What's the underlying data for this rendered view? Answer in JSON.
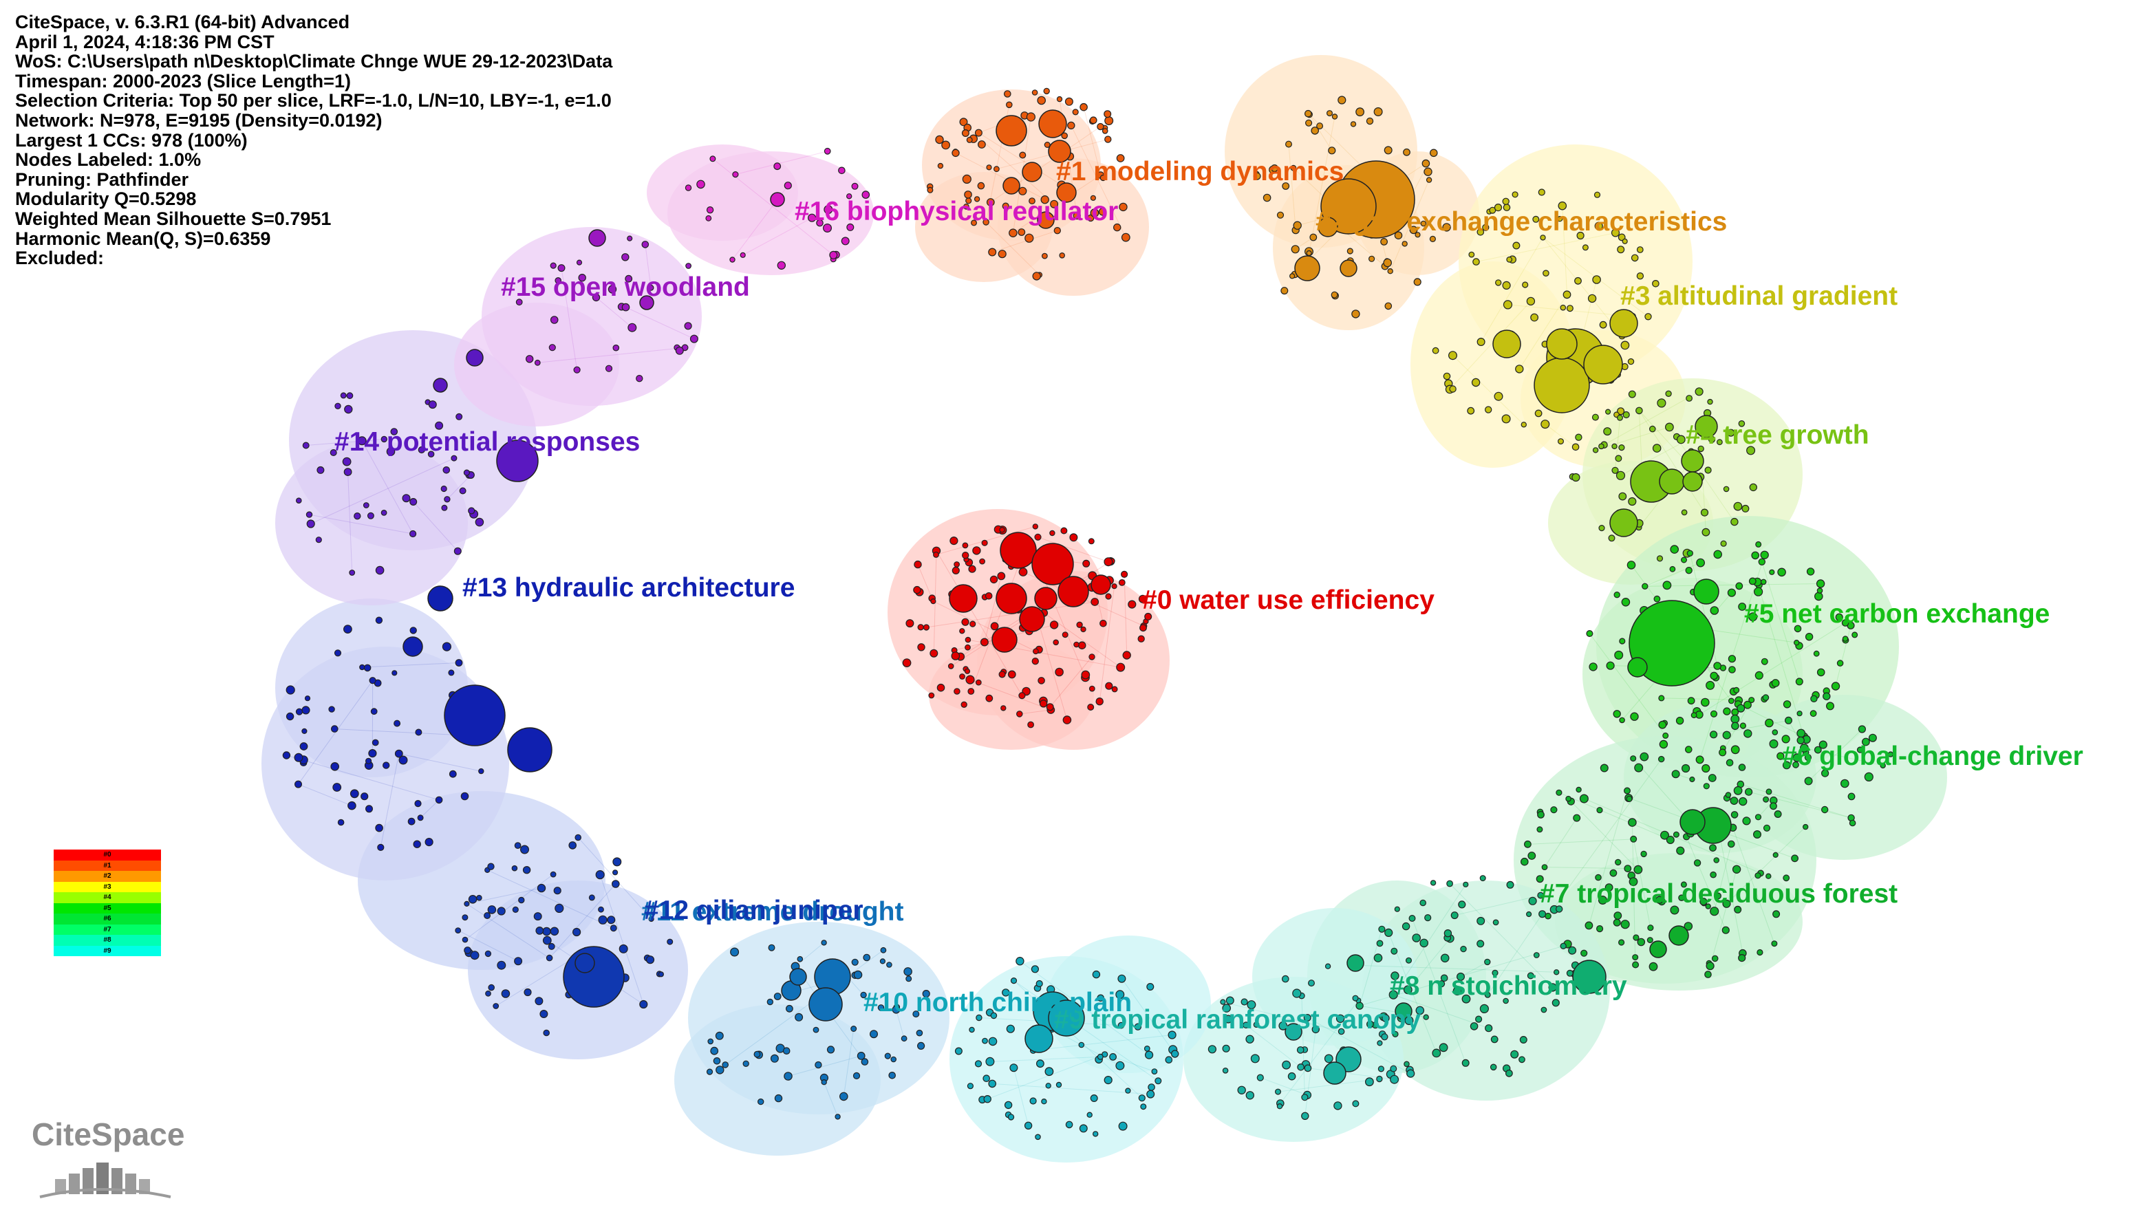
{
  "info": {
    "lines": [
      "CiteSpace, v. 6.3.R1 (64-bit) Advanced",
      "April 1, 2024, 4:18:36 PM CST",
      "WoS: C:\\Users\\path  n\\Desktop\\Climate Chnge WUE 29-12-2023\\Data",
      "Timespan: 2000-2023 (Slice Length=1)",
      "Selection Criteria: Top 50 per slice, LRF=-1.0, L/N=10, LBY=-1, e=1.0",
      "Network: N=978, E=9195 (Density=0.0192)",
      "Largest 1 CCs: 978 (100%)",
      "Nodes Labeled: 1.0%",
      "Pruning: Pathfinder",
      "Modularity Q=0.5298",
      "Weighted Mean Silhouette S=0.7951",
      "Harmonic Mean(Q, S)=0.6359",
      "Excluded:"
    ]
  },
  "clusters": [
    {
      "id": 0,
      "label": "#0 water use efficiency",
      "color": "#e00000",
      "icon": "cluster-0-node"
    },
    {
      "id": 1,
      "label": "#1 modeling dynamics",
      "color": "#e85a0c",
      "icon": "cluster-1-node"
    },
    {
      "id": 2,
      "label": "#2 gas exchange characteristics",
      "color": "#d98a10",
      "icon": "cluster-2-node"
    },
    {
      "id": 3,
      "label": "#3 altitudinal gradient",
      "color": "#c4c010",
      "icon": "cluster-3-node"
    },
    {
      "id": 4,
      "label": "#4 tree growth",
      "color": "#78c214",
      "icon": "cluster-4-node"
    },
    {
      "id": 5,
      "label": "#5 net carbon exchange",
      "color": "#16c016",
      "icon": "cluster-5-node"
    },
    {
      "id": 6,
      "label": "#6 global-change driver",
      "color": "#12b82e",
      "icon": "cluster-6-node"
    },
    {
      "id": 7,
      "label": "#7 tropical deciduous forest",
      "color": "#10ad2c",
      "icon": "cluster-7-node"
    },
    {
      "id": 8,
      "label": "#8 n stoichiometry",
      "color": "#10ad70",
      "icon": "cluster-8-node"
    },
    {
      "id": 9,
      "label": "#9 tropical rainforest canopy",
      "color": "#18b0a0",
      "icon": "cluster-9-node"
    },
    {
      "id": 10,
      "label": "#10 north china plain",
      "color": "#10a6b8",
      "icon": "cluster-10-node"
    },
    {
      "id": 11,
      "label": "#11 extreme drought",
      "color": "#1070b8",
      "icon": "cluster-11-node"
    },
    {
      "id": 12,
      "label": "#12 qilian juniper",
      "color": "#1038b0",
      "icon": "cluster-12-node"
    },
    {
      "id": 13,
      "label": "#13 hydraulic architecture",
      "color": "#1020b0",
      "icon": "cluster-13-node"
    },
    {
      "id": 14,
      "label": "#14 potential responses",
      "color": "#5a18c0",
      "icon": "cluster-14-node"
    },
    {
      "id": 15,
      "label": "#15 open woodland",
      "color": "#9a18c0",
      "icon": "cluster-15-node"
    },
    {
      "id": 16,
      "label": "#16 biophysical regulator",
      "color": "#d418c0",
      "icon": "cluster-16-node"
    }
  ],
  "legend": {
    "items": [
      {
        "label": "#0",
        "color": "#ff0000"
      },
      {
        "label": "#1",
        "color": "#ff4d00"
      },
      {
        "label": "#2",
        "color": "#ff9900"
      },
      {
        "label": "#3",
        "color": "#ffff00"
      },
      {
        "label": "#4",
        "color": "#99ff00"
      },
      {
        "label": "#5",
        "color": "#00e600"
      },
      {
        "label": "#6",
        "color": "#00e633"
      },
      {
        "label": "#7",
        "color": "#00ff66"
      },
      {
        "label": "#8",
        "color": "#00ffb3"
      },
      {
        "label": "#9",
        "color": "#00ffe6"
      }
    ]
  },
  "logo": {
    "text": "CiteSpace"
  }
}
